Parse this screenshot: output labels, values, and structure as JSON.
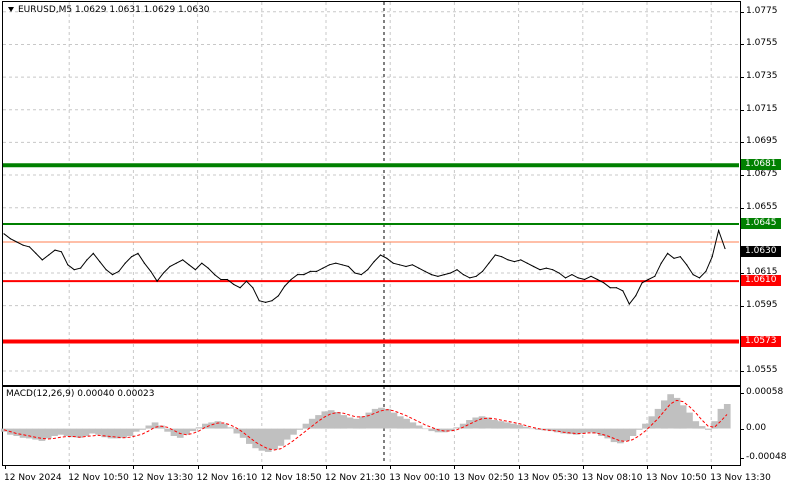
{
  "header": {
    "symbol_line": "EURUSD,M5  1.0629 1.0631 1.0629 1.0630"
  },
  "macd": {
    "label": "MACD(12,26,9) 0.00040 0.00023",
    "axis_ticks": [
      "0.00058",
      "0.00",
      "-0.00048"
    ]
  },
  "y_axis_ticks": [
    "1.0775",
    "1.0755",
    "1.0735",
    "1.0715",
    "1.0695",
    "1.0675",
    "1.0655",
    "1.0615",
    "1.0595",
    "1.0555"
  ],
  "x_axis_ticks": [
    "12 Nov 2024",
    "12 Nov 10:50",
    "12 Nov 13:30",
    "12 Nov 16:10",
    "12 Nov 18:50",
    "12 Nov 21:30",
    "13 Nov 00:10",
    "13 Nov 02:50",
    "13 Nov 05:30",
    "13 Nov 08:10",
    "13 Nov 10:50",
    "13 Nov 13:30"
  ],
  "levels": [
    {
      "value": "1.0681",
      "color": "#008000",
      "thickness": "thick"
    },
    {
      "value": "1.0645",
      "color": "#008000",
      "thickness": "thin"
    },
    {
      "value": "1.0610",
      "color": "#ff0000",
      "thickness": "thin"
    },
    {
      "value": "1.0573",
      "color": "#ff0000",
      "thickness": "thick"
    }
  ],
  "current_price": "1.0630",
  "colors": {
    "price_line": "#000000",
    "bid_line": "#ff7f50",
    "histogram": "#c0c0c0",
    "signal": "#ff0000",
    "crosshair": "#000000"
  },
  "chart_data": [
    {
      "type": "line",
      "title": "EURUSD,M5",
      "ylim": [
        1.0547,
        1.0781
      ],
      "series": [
        {
          "values": [
            1.0639,
            1.0636,
            1.0634,
            1.0632,
            1.0631,
            1.0627,
            1.0623,
            1.0626,
            1.0629,
            1.0628,
            1.062,
            1.0617,
            1.0618,
            1.0623,
            1.0627,
            1.0622,
            1.0617,
            1.0614,
            1.0616,
            1.0621,
            1.0625,
            1.0627,
            1.0621,
            1.0616,
            1.061,
            1.0615,
            1.0619,
            1.0621,
            1.0623,
            1.062,
            1.0617,
            1.0621,
            1.0618,
            1.0614,
            1.0611,
            1.0611,
            1.0608,
            1.0606,
            1.061,
            1.0606,
            1.0598,
            1.0597,
            1.0598,
            1.0601,
            1.0607,
            1.0611,
            1.0614,
            1.0614,
            1.0616,
            1.0616,
            1.0618,
            1.062,
            1.0621,
            1.062,
            1.0619,
            1.0615,
            1.0614,
            1.0617,
            1.0622,
            1.0626,
            1.0624,
            1.0621,
            1.062,
            1.0619,
            1.062,
            1.0618,
            1.0616,
            1.0614,
            1.0613,
            1.0614,
            1.0615,
            1.0617,
            1.0614,
            1.0612,
            1.0613,
            1.0616,
            1.0621,
            1.0626,
            1.0625,
            1.0623,
            1.0622,
            1.0623,
            1.0621,
            1.0619,
            1.0617,
            1.0618,
            1.0617,
            1.0615,
            1.0612,
            1.0614,
            1.0612,
            1.0611,
            1.0613,
            1.0611,
            1.0609,
            1.0606,
            1.0606,
            1.0604,
            1.0596,
            1.0601,
            1.0609,
            1.0611,
            1.0613,
            1.0621,
            1.0627,
            1.0624,
            1.0625,
            1.062,
            1.0614,
            1.0612,
            1.0616,
            1.0625,
            1.0641,
            1.063
          ]
        }
      ]
    },
    {
      "type": "bar",
      "title": "MACD(12,26,9)",
      "ylim": [
        -0.00048,
        0.00058
      ],
      "series": [
        {
          "values": [
            -5e-05,
            -0.0001,
            -0.00012,
            -0.00015,
            -0.00016,
            -0.00018,
            -0.0002,
            -0.00016,
            -0.00012,
            -0.0001,
            -0.00012,
            -0.00014,
            -0.00015,
            -0.00012,
            -8e-05,
            -0.0001,
            -0.00014,
            -0.00016,
            -0.00016,
            -0.00015,
            -0.00012,
            -5e-05,
            -2e-05,
            5e-05,
            0.0001,
            5e-05,
            -5e-05,
            -0.00012,
            -0.00015,
            -0.0001,
            -4e-05,
            2e-05,
            8e-05,
            0.0001,
            0.00012,
            8e-05,
            2e-05,
            -8e-05,
            -0.00015,
            -0.00025,
            -0.00032,
            -0.00036,
            -0.00038,
            -0.00034,
            -0.00028,
            -0.00018,
            -0.0001,
            -2e-05,
            8e-05,
            0.00016,
            0.00022,
            0.00028,
            0.0003,
            0.00027,
            0.00022,
            0.00018,
            0.00016,
            0.0002,
            0.00026,
            0.00032,
            0.00034,
            0.00032,
            0.00026,
            0.0002,
            0.00016,
            0.0001,
            5e-05,
            0.0,
            -4e-05,
            -6e-05,
            -6e-05,
            -4e-05,
            2e-05,
            8e-05,
            0.00014,
            0.00018,
            0.0002,
            0.00018,
            0.00014,
            0.00012,
            0.0001,
            8e-05,
            6e-05,
            3e-05,
            0.0,
            -2e-05,
            -3e-05,
            -4e-05,
            -6e-05,
            -8e-05,
            -9e-05,
            -0.0001,
            -8e-05,
            -6e-05,
            -8e-05,
            -0.00012,
            -0.00016,
            -0.00022,
            -0.00024,
            -0.0002,
            -0.00012,
            -2e-05,
            8e-05,
            0.0002,
            0.00032,
            0.00046,
            0.00056,
            0.0005,
            0.00038,
            0.00026,
            0.00012,
            4e-05,
            -2e-05,
            0.00012,
            0.00032,
            0.0004
          ]
        },
        {
          "values": [
            -2e-05,
            -5e-05,
            -8e-05,
            -0.0001,
            -0.00012,
            -0.00014,
            -0.00016,
            -0.00017,
            -0.00016,
            -0.00014,
            -0.00013,
            -0.00013,
            -0.00014,
            -0.00013,
            -0.00012,
            -0.00011,
            -0.00012,
            -0.00013,
            -0.00014,
            -0.00015,
            -0.00014,
            -0.00012,
            -9e-05,
            -4e-05,
            2e-05,
            4e-05,
            2e-05,
            -3e-05,
            -8e-05,
            -0.0001,
            -8e-05,
            -4e-05,
            2e-05,
            6e-05,
            9e-05,
            9e-05,
            6e-05,
            1e-05,
            -6e-05,
            -0.00014,
            -0.00022,
            -0.00028,
            -0.00033,
            -0.00035,
            -0.00033,
            -0.00027,
            -0.0002,
            -0.00012,
            -4e-05,
            4e-05,
            0.00012,
            0.00019,
            0.00024,
            0.00026,
            0.00025,
            0.00022,
            0.00019,
            0.00019,
            0.00021,
            0.00025,
            0.00029,
            0.00031,
            0.00029,
            0.00025,
            0.00021,
            0.00016,
            0.00011,
            6e-05,
            2e-05,
            -2e-05,
            -4e-05,
            -4e-05,
            -2e-05,
            2e-05,
            7e-05,
            0.00012,
            0.00016,
            0.00017,
            0.00016,
            0.00014,
            0.00012,
            0.0001,
            8e-05,
            5e-05,
            2e-05,
            0.0,
            -2e-05,
            -3e-05,
            -4e-05,
            -6e-05,
            -7e-05,
            -8e-05,
            -8e-05,
            -7e-05,
            -7e-05,
            -9e-05,
            -0.00012,
            -0.00016,
            -0.0002,
            -0.00021,
            -0.00018,
            -0.00012,
            -4e-05,
            6e-05,
            0.00016,
            0.00028,
            0.0004,
            0.00046,
            0.00044,
            0.00036,
            0.00026,
            0.00014,
            4e-05,
            2e-05,
            0.00012,
            0.00023
          ]
        }
      ]
    }
  ]
}
